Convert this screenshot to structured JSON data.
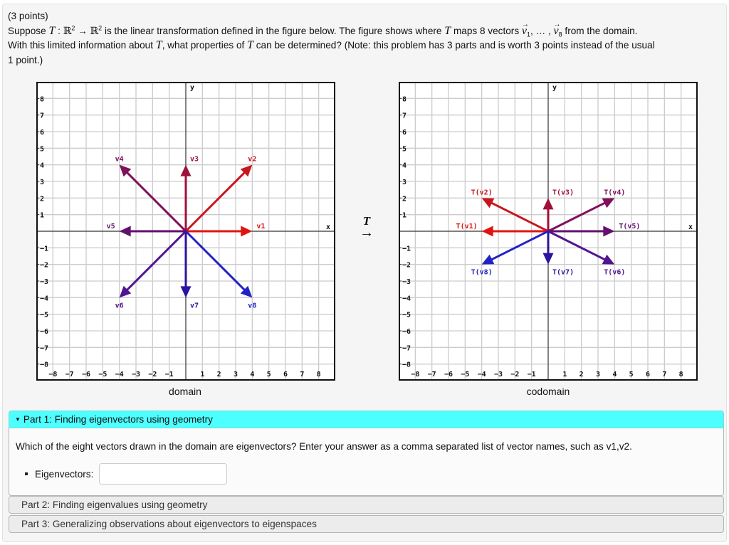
{
  "problem": {
    "points": "(3 points)",
    "sentence1_a": "Suppose ",
    "T": "T",
    "colon": " : ",
    "R": "ℝ",
    "exp": "2",
    "map_arrow": " → ",
    "sentence1_b": " is the linear transformation defined in the figure below. The figure shows where ",
    "sentence1_c": " maps 8 vectors ",
    "v": "v",
    "sub1": "1",
    "ellipsis": ", … , ",
    "sub8": "8",
    "sentence1_d": " from the domain.",
    "sentence2_a": "With this limited information about ",
    "sentence2_b": ", what properties of ",
    "sentence2_c": " can be determined? (Note: this problem has 3 parts and is worth 3 points instead of the usual",
    "sentence3": "1 point.)"
  },
  "figure": {
    "transform_label": "T",
    "transform_arrow": "→",
    "domain_caption": "domain",
    "codomain_caption": "codomain"
  },
  "chart_data": [
    {
      "type": "vector-plot",
      "title": "domain",
      "xlabel": "x",
      "ylabel": "y",
      "xlim": [
        -9,
        9
      ],
      "ylim": [
        -9,
        9
      ],
      "xticks": [
        -8,
        -7,
        -6,
        -5,
        -4,
        -3,
        -2,
        -1,
        1,
        2,
        3,
        4,
        5,
        6,
        7,
        8
      ],
      "yticks": [
        -8,
        -7,
        -6,
        -5,
        -4,
        -3,
        -2,
        -1,
        1,
        2,
        3,
        4,
        5,
        6,
        7,
        8
      ],
      "grid": true,
      "vectors": [
        {
          "label": "v1",
          "x": 4,
          "y": 0,
          "color": "#e0140f"
        },
        {
          "label": "v2",
          "x": 4,
          "y": 4,
          "color": "#c8161c"
        },
        {
          "label": "v3",
          "x": 0,
          "y": 4,
          "color": "#a1103a"
        },
        {
          "label": "v4",
          "x": -4,
          "y": 4,
          "color": "#80105a"
        },
        {
          "label": "v5",
          "x": -4,
          "y": 0,
          "color": "#62106e"
        },
        {
          "label": "v6",
          "x": -4,
          "y": -4,
          "color": "#521490"
        },
        {
          "label": "v7",
          "x": 0,
          "y": -4,
          "color": "#2e12a0"
        },
        {
          "label": "v8",
          "x": 4,
          "y": -4,
          "color": "#2222c4"
        }
      ]
    },
    {
      "type": "vector-plot",
      "title": "codomain",
      "xlabel": "x",
      "ylabel": "y",
      "xlim": [
        -9,
        9
      ],
      "ylim": [
        -9,
        9
      ],
      "xticks": [
        -8,
        -7,
        -6,
        -5,
        -4,
        -3,
        -2,
        -1,
        1,
        2,
        3,
        4,
        5,
        6,
        7,
        8
      ],
      "yticks": [
        -8,
        -7,
        -6,
        -5,
        -4,
        -3,
        -2,
        -1,
        1,
        2,
        3,
        4,
        5,
        6,
        7,
        8
      ],
      "grid": true,
      "vectors": [
        {
          "label": "T(v1)",
          "x": -4,
          "y": 0,
          "color": "#e0140f"
        },
        {
          "label": "T(v2)",
          "x": -4,
          "y": 2,
          "color": "#c8161c"
        },
        {
          "label": "T(v3)",
          "x": 0,
          "y": 2,
          "color": "#a1103a"
        },
        {
          "label": "T(v4)",
          "x": 4,
          "y": 2,
          "color": "#80105a"
        },
        {
          "label": "T(v5)",
          "x": 4,
          "y": 0,
          "color": "#62106e"
        },
        {
          "label": "T(v6)",
          "x": 4,
          "y": -2,
          "color": "#521490"
        },
        {
          "label": "T(v7)",
          "x": 0,
          "y": -2,
          "color": "#2e12a0"
        },
        {
          "label": "T(v8)",
          "x": -4,
          "y": -2,
          "color": "#2222c4"
        }
      ]
    }
  ],
  "parts": [
    {
      "label": "Part 1: Finding eigenvectors using geometry",
      "expanded": true,
      "question": "Which of the eight vectors drawn in the domain are eigenvectors? Enter your answer as a comma separated list of vector names, such as v1,v2.",
      "answer_label": "Eigenvectors:",
      "answer_value": "",
      "answer_placeholder": ""
    },
    {
      "label": "Part 2: Finding eigenvalues using geometry",
      "expanded": false
    },
    {
      "label": "Part 3: Generalizing observations about eigenvectors to eigenspaces",
      "expanded": false
    }
  ],
  "colors": {
    "active_header": "#4dffff",
    "inactive_header": "#ececec",
    "panel_bg": "#f5f5f5",
    "grid": "#cccccc"
  }
}
